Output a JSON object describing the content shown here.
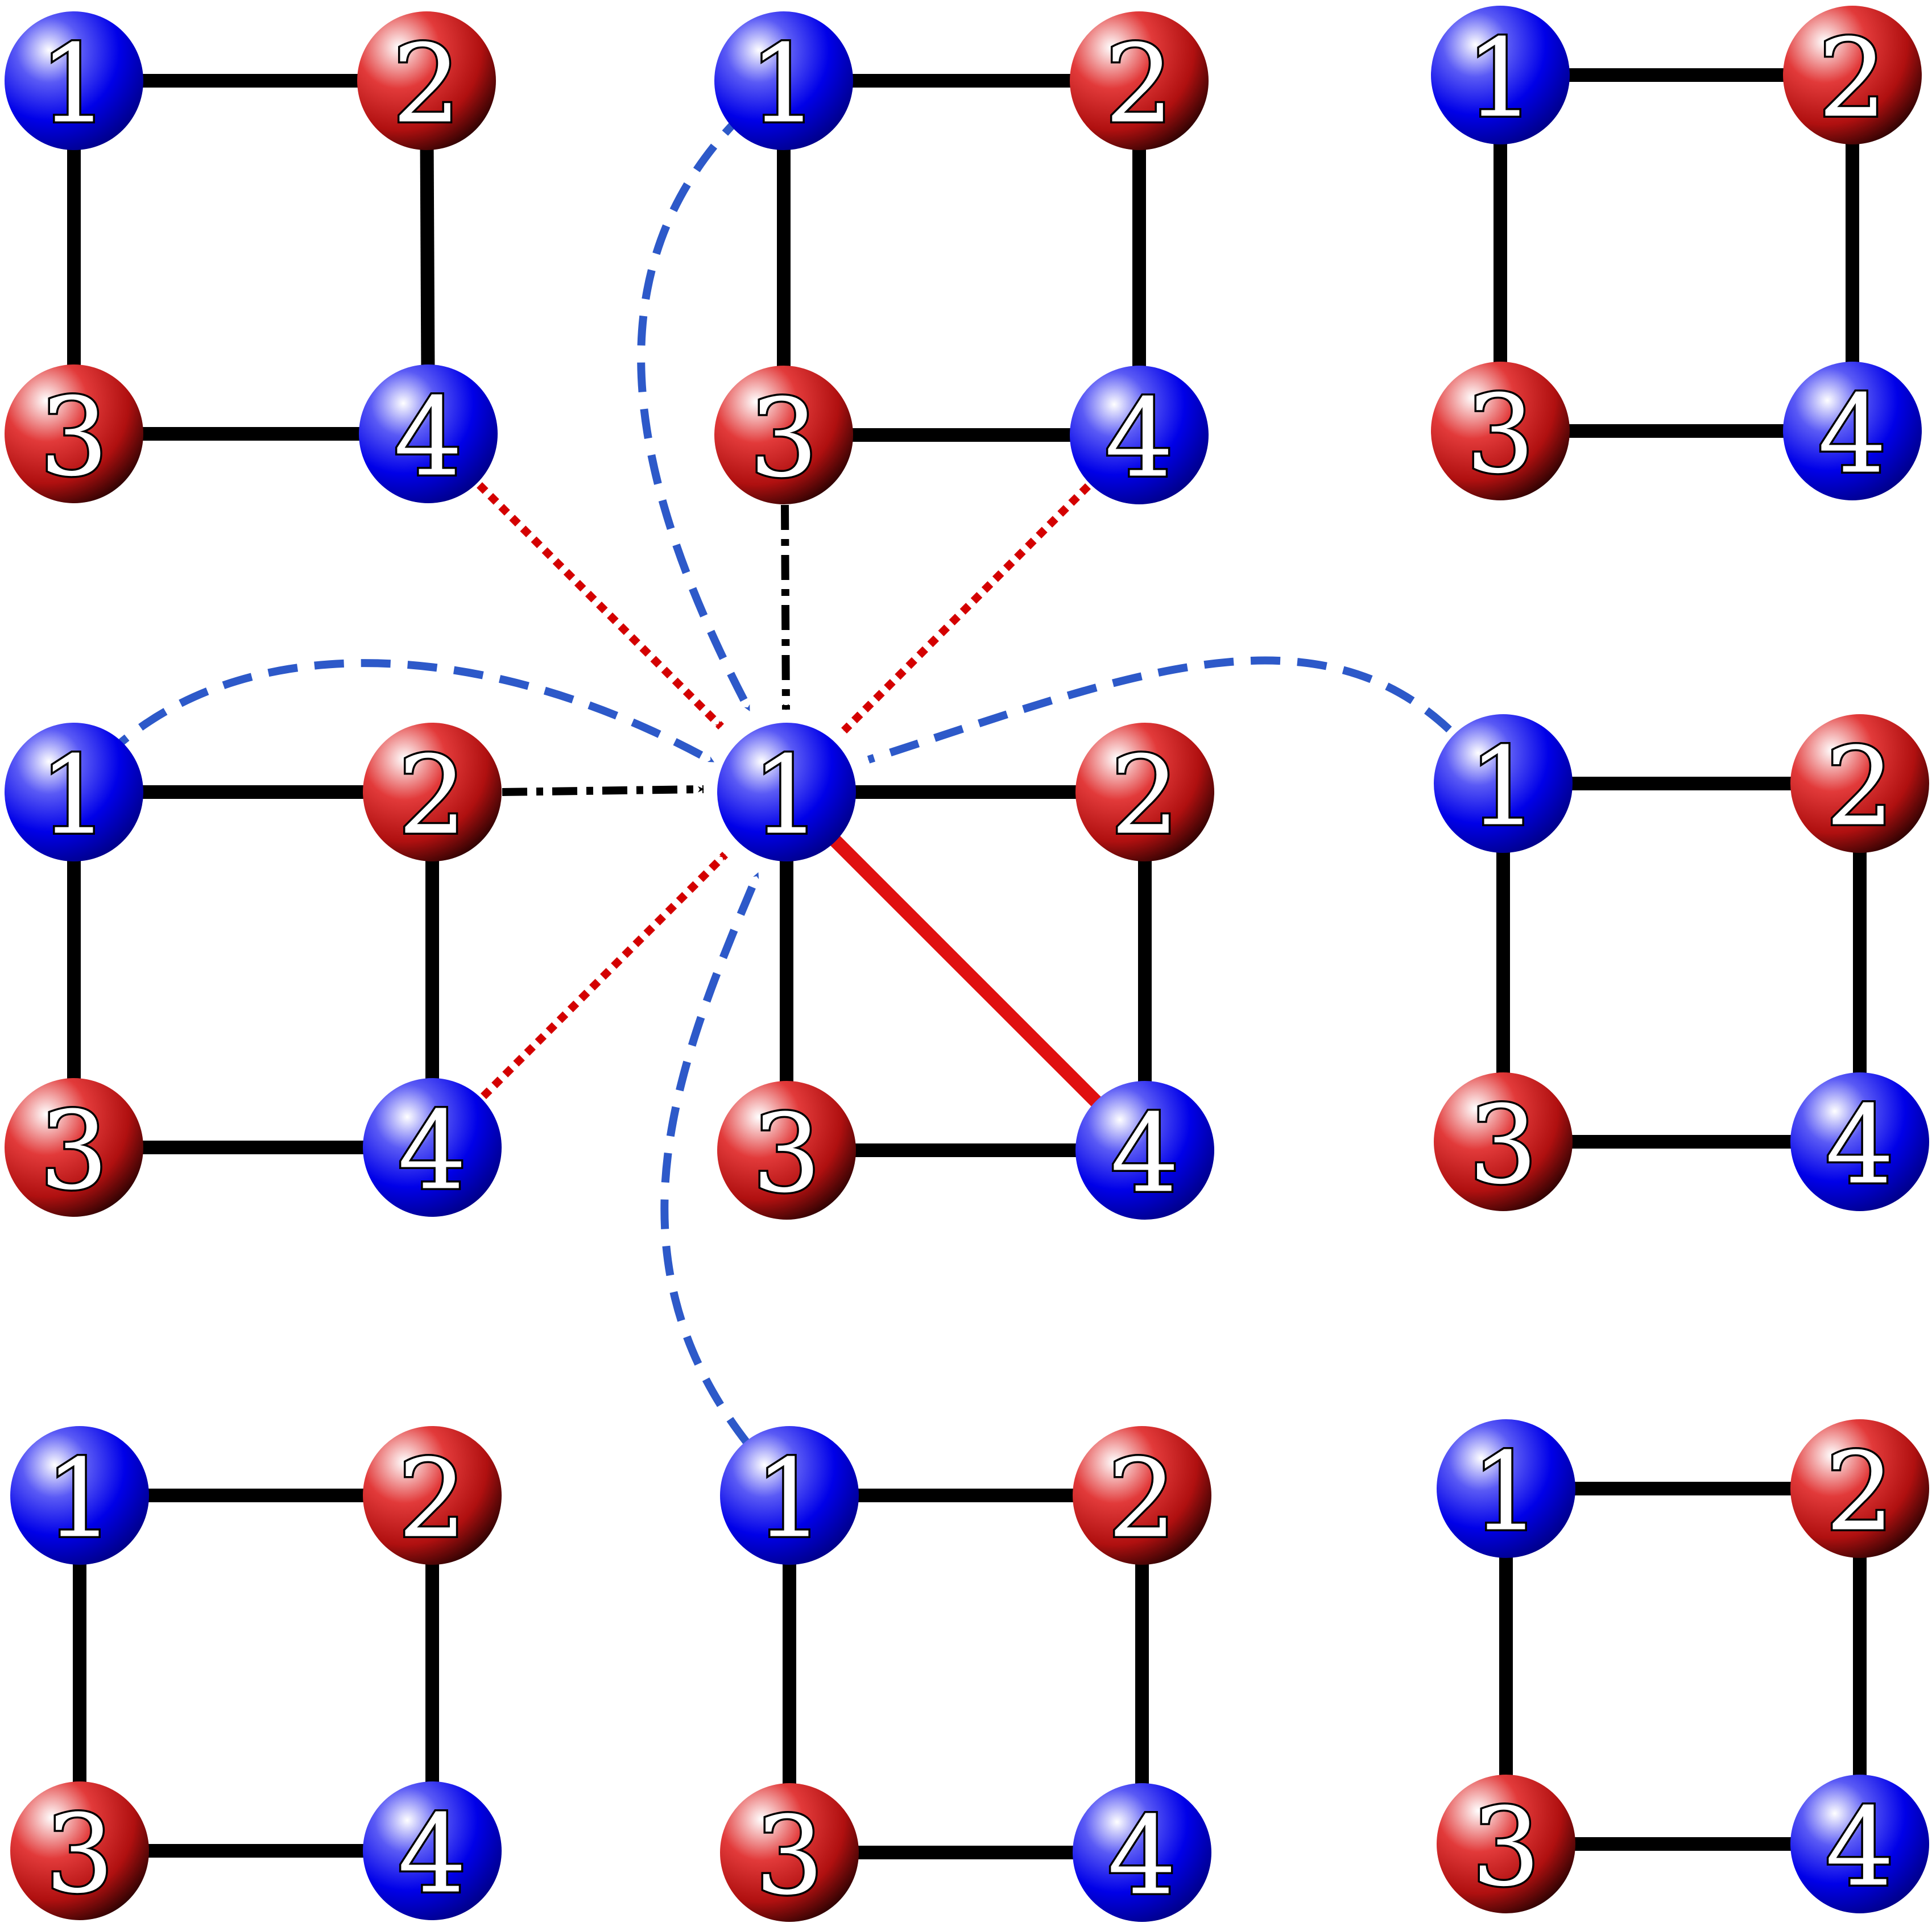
{
  "colors": {
    "blue_node": "#1010e6",
    "red_node": "#d01818",
    "edge": "#000000",
    "highlight_edge": "#e01010",
    "blue_arrow": "#2d59c9",
    "red_arrow": "#d40000",
    "black_arrow": "#000000"
  },
  "plaquettes": [
    {
      "id": "p00",
      "nodes": [
        {
          "label": "1",
          "color": "blue"
        },
        {
          "label": "2",
          "color": "red"
        },
        {
          "label": "3",
          "color": "red"
        },
        {
          "label": "4",
          "color": "blue"
        }
      ]
    },
    {
      "id": "p01",
      "nodes": [
        {
          "label": "1",
          "color": "blue"
        },
        {
          "label": "2",
          "color": "red"
        },
        {
          "label": "3",
          "color": "red"
        },
        {
          "label": "4",
          "color": "blue"
        }
      ]
    },
    {
      "id": "p02",
      "nodes": [
        {
          "label": "1",
          "color": "blue"
        },
        {
          "label": "2",
          "color": "red"
        },
        {
          "label": "3",
          "color": "red"
        },
        {
          "label": "4",
          "color": "blue"
        }
      ]
    },
    {
      "id": "p10",
      "nodes": [
        {
          "label": "1",
          "color": "blue"
        },
        {
          "label": "2",
          "color": "red"
        },
        {
          "label": "3",
          "color": "red"
        },
        {
          "label": "4",
          "color": "blue"
        }
      ]
    },
    {
      "id": "p11",
      "nodes": [
        {
          "label": "1",
          "color": "blue"
        },
        {
          "label": "2",
          "color": "red"
        },
        {
          "label": "3",
          "color": "red"
        },
        {
          "label": "4",
          "color": "blue"
        }
      ]
    },
    {
      "id": "p12",
      "nodes": [
        {
          "label": "1",
          "color": "blue"
        },
        {
          "label": "2",
          "color": "red"
        },
        {
          "label": "3",
          "color": "red"
        },
        {
          "label": "4",
          "color": "blue"
        }
      ]
    },
    {
      "id": "p20",
      "nodes": [
        {
          "label": "1",
          "color": "blue"
        },
        {
          "label": "2",
          "color": "red"
        },
        {
          "label": "3",
          "color": "red"
        },
        {
          "label": "4",
          "color": "blue"
        }
      ]
    },
    {
      "id": "p21",
      "nodes": [
        {
          "label": "1",
          "color": "blue"
        },
        {
          "label": "2",
          "color": "red"
        },
        {
          "label": "3",
          "color": "red"
        },
        {
          "label": "4",
          "color": "blue"
        }
      ]
    },
    {
      "id": "p22",
      "nodes": [
        {
          "label": "1",
          "color": "blue"
        },
        {
          "label": "2",
          "color": "red"
        },
        {
          "label": "3",
          "color": "red"
        },
        {
          "label": "4",
          "color": "blue"
        }
      ]
    }
  ],
  "square_edges": [
    [
      "1",
      "2"
    ],
    [
      "2",
      "4"
    ],
    [
      "4",
      "3"
    ],
    [
      "3",
      "1"
    ]
  ],
  "intra_links": [
    {
      "plaquette": "p11",
      "from": "1",
      "to": "4",
      "color": "red",
      "style": "solid"
    }
  ],
  "couplings": [
    {
      "from_plaquette": "p01",
      "from": "1",
      "to_plaquette": "p11",
      "to": "1",
      "color": "blue",
      "style": "dashed"
    },
    {
      "from_plaquette": "p10",
      "from": "1",
      "to_plaquette": "p11",
      "to": "1",
      "color": "blue",
      "style": "dashed"
    },
    {
      "from_plaquette": "p12",
      "from": "1",
      "to_plaquette": "p11",
      "to": "1",
      "color": "blue",
      "style": "dashed"
    },
    {
      "from_plaquette": "p21",
      "from": "1",
      "to_plaquette": "p11",
      "to": "1",
      "color": "blue",
      "style": "dashed"
    },
    {
      "from_plaquette": "p00",
      "from": "4",
      "to_plaquette": "p11",
      "to": "1",
      "color": "red",
      "style": "dotted"
    },
    {
      "from_plaquette": "p01",
      "from": "4",
      "to_plaquette": "p11",
      "to": "1",
      "color": "red",
      "style": "dotted"
    },
    {
      "from_plaquette": "p10",
      "from": "4",
      "to_plaquette": "p11",
      "to": "1",
      "color": "red",
      "style": "dotted"
    },
    {
      "from_plaquette": "p01",
      "from": "3",
      "to_plaquette": "p11",
      "to": "1",
      "color": "black",
      "style": "dash-dot"
    },
    {
      "from_plaquette": "p10",
      "from": "2",
      "to_plaquette": "p11",
      "to": "1",
      "color": "black",
      "style": "dash-dot"
    }
  ]
}
